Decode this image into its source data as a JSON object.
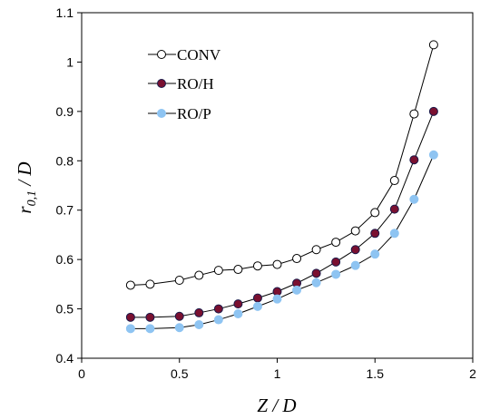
{
  "chart_data": {
    "type": "line",
    "xlabel": "Z / D",
    "ylabel_main": "r",
    "ylabel_sub": "0,1",
    "ylabel_rest": " / D",
    "xlim": [
      0,
      2
    ],
    "ylim": [
      0.4,
      1.1
    ],
    "x_ticks": [
      0,
      0.5,
      1,
      1.5,
      2
    ],
    "x_tick_labels": [
      "0",
      "0.5",
      "1",
      "1.5",
      "2"
    ],
    "y_ticks": [
      0.4,
      0.5,
      0.6,
      0.7,
      0.8,
      0.9,
      1.0,
      1.1
    ],
    "y_tick_labels": [
      "0.4",
      "0.5",
      "0.6",
      "0.7",
      "0.8",
      "0.9",
      "1",
      "1.1"
    ],
    "grid": false,
    "legend_position": "top-left",
    "x": [
      0.25,
      0.35,
      0.5,
      0.6,
      0.7,
      0.8,
      0.9,
      1.0,
      1.1,
      1.2,
      1.3,
      1.4,
      1.5,
      1.6,
      1.7,
      1.8
    ],
    "series": [
      {
        "name": "CONV",
        "marker": "open-circle",
        "marker_fill": "#ffffff",
        "marker_stroke": "#000000",
        "line_color": "#000000",
        "values": [
          0.548,
          0.55,
          0.558,
          0.568,
          0.578,
          0.58,
          0.587,
          0.59,
          0.602,
          0.62,
          0.635,
          0.658,
          0.695,
          0.76,
          0.895,
          1.035
        ]
      },
      {
        "name": "RO/H",
        "marker": "filled-circle",
        "marker_fill": "#7a1030",
        "marker_stroke": "#1a1a4a",
        "line_color": "#000000",
        "values": [
          0.483,
          0.483,
          0.485,
          0.492,
          0.5,
          0.51,
          0.522,
          0.535,
          0.552,
          0.572,
          0.595,
          0.62,
          0.653,
          0.702,
          0.802,
          0.9
        ]
      },
      {
        "name": "RO/P",
        "marker": "filled-circle",
        "marker_fill": "#8ec4f2",
        "marker_stroke": "#8ec4f2",
        "line_color": "#000000",
        "values": [
          0.46,
          0.46,
          0.462,
          0.468,
          0.478,
          0.49,
          0.505,
          0.52,
          0.538,
          0.553,
          0.57,
          0.588,
          0.611,
          0.653,
          0.722,
          0.812
        ]
      }
    ]
  }
}
